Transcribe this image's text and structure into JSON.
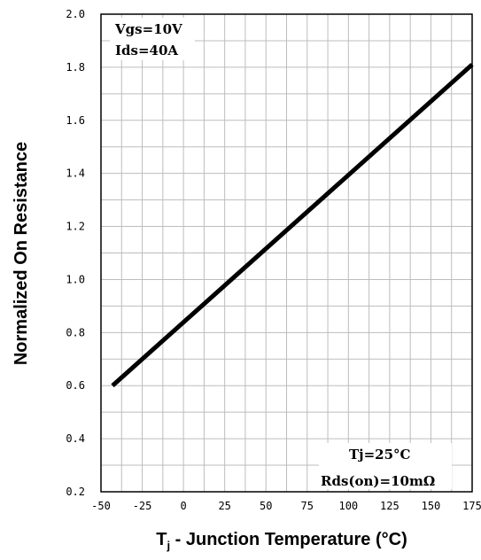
{
  "chart_data": {
    "type": "line",
    "title": "",
    "xlabel": "T",
    "xlabel_sub": "j",
    "xlabel_rest": " - Junction Temperature (°C)",
    "ylabel": "Normalized On Resistance",
    "xlim": [
      -50,
      175
    ],
    "ylim": [
      0.2,
      2.0
    ],
    "x_ticks": [
      -50,
      -25,
      0,
      25,
      50,
      75,
      100,
      125,
      150,
      175
    ],
    "y_ticks": [
      0.2,
      0.4,
      0.6,
      0.8,
      1.0,
      1.2,
      1.4,
      1.6,
      1.8,
      2.0
    ],
    "y_tick_labels": [
      "0.2",
      "0.4",
      "0.6",
      "0.8",
      "1.0",
      "1.2",
      "1.4",
      "1.6",
      "1.8",
      "2.0"
    ],
    "grid": true,
    "series": [
      {
        "x": [
          -43,
          175
        ],
        "y": [
          0.6,
          1.81
        ]
      }
    ],
    "annotations": {
      "top_left": [
        "Vgs=10V",
        "Ids=40A"
      ],
      "bottom_right": [
        "Tj=25°C",
        "Rds(on)=10mΩ"
      ]
    }
  }
}
